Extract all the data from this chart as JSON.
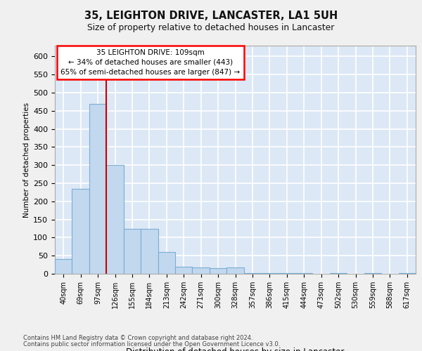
{
  "title1": "35, LEIGHTON DRIVE, LANCASTER, LA1 5UH",
  "title2": "Size of property relative to detached houses in Lancaster",
  "xlabel": "Distribution of detached houses by size in Lancaster",
  "ylabel": "Number of detached properties",
  "categories": [
    "40sqm",
    "69sqm",
    "97sqm",
    "126sqm",
    "155sqm",
    "184sqm",
    "213sqm",
    "242sqm",
    "271sqm",
    "300sqm",
    "328sqm",
    "357sqm",
    "386sqm",
    "415sqm",
    "444sqm",
    "473sqm",
    "502sqm",
    "530sqm",
    "559sqm",
    "588sqm",
    "617sqm"
  ],
  "values": [
    40,
    235,
    470,
    300,
    125,
    125,
    60,
    20,
    18,
    15,
    17,
    2,
    1,
    1,
    1,
    0,
    1,
    0,
    1,
    0,
    1
  ],
  "bar_color": "#c2d8ee",
  "bar_edge_color": "#7aadd4",
  "red_line_color": "#cc0000",
  "red_line_x": 2.5,
  "annotation_line1": "35 LEIGHTON DRIVE: 109sqm",
  "annotation_line2": "← 34% of detached houses are smaller (443)",
  "annotation_line3": "65% of semi-detached houses are larger (847) →",
  "ylim_max": 630,
  "ytick_values": [
    0,
    50,
    100,
    150,
    200,
    250,
    300,
    350,
    400,
    450,
    500,
    550,
    600
  ],
  "footer1": "Contains HM Land Registry data © Crown copyright and database right 2024.",
  "footer2": "Contains public sector information licensed under the Open Government Licence v3.0.",
  "bg_color": "#dce8f5",
  "fig_bg": "#f0f0f0",
  "grid_color": "white",
  "ann_box_edge": "red",
  "ann_box_face": "white"
}
